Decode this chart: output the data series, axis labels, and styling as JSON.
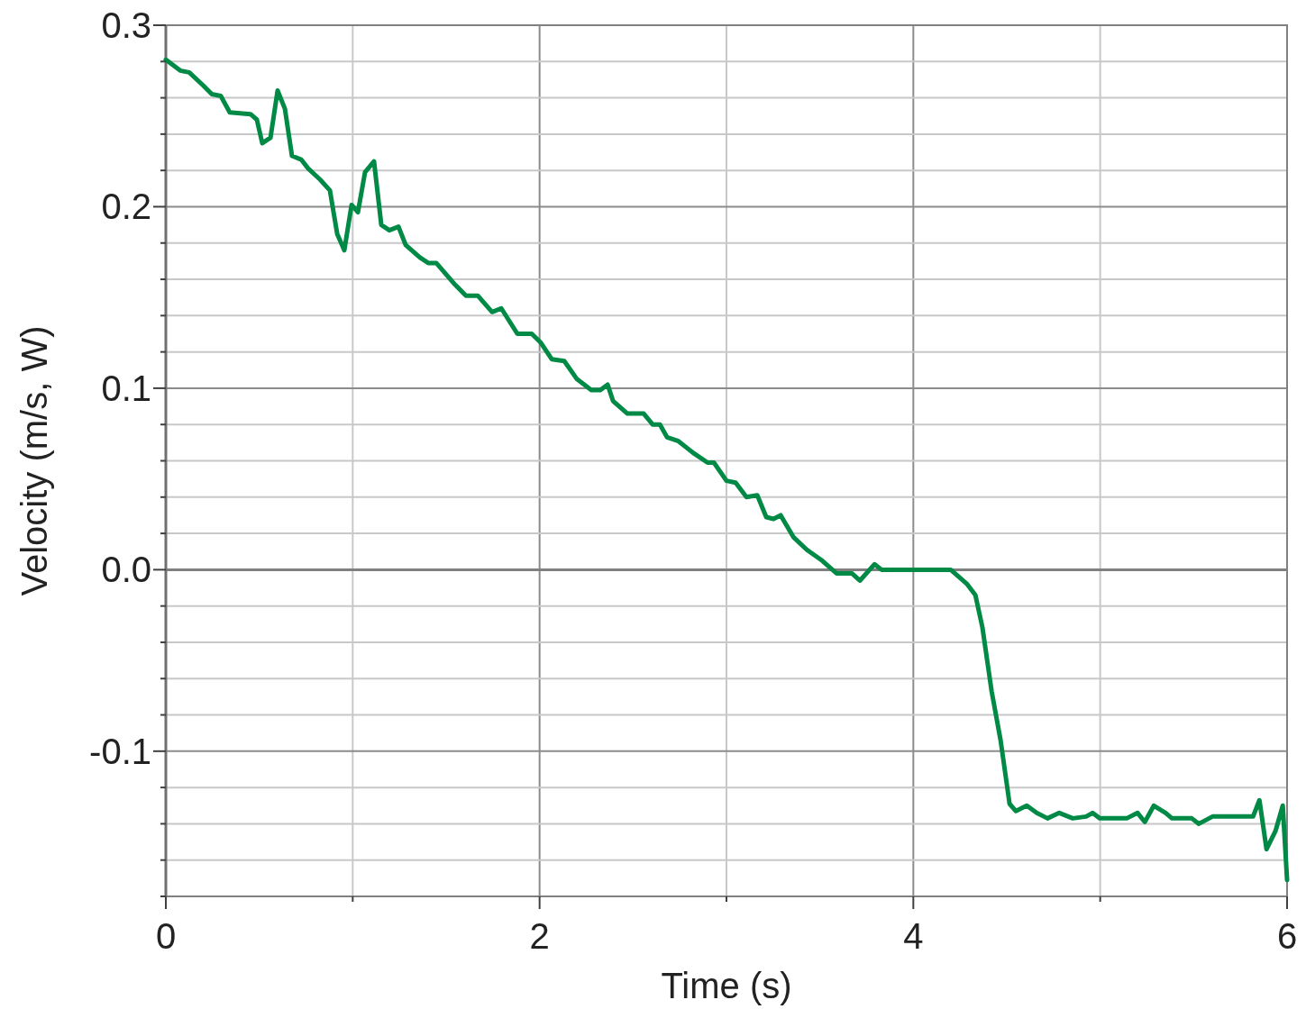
{
  "chart_data": {
    "type": "line",
    "xlabel": "Time (s)",
    "ylabel": "Velocity (m/s, W)",
    "xlim": [
      0,
      6
    ],
    "ylim": [
      -0.18,
      0.3
    ],
    "xticks": [
      0,
      {
        "value": 1,
        "label": null
      },
      2,
      {
        "value": 3,
        "label": null
      },
      4,
      {
        "value": 5,
        "label": null
      },
      6
    ],
    "yticks": [
      {
        "value": -0.18,
        "label": null
      },
      {
        "value": -0.16,
        "label": null
      },
      {
        "value": -0.14,
        "label": null
      },
      {
        "value": -0.12,
        "label": null
      },
      {
        "value": -0.1,
        "label": "-0.1"
      },
      {
        "value": -0.08,
        "label": null
      },
      {
        "value": -0.06,
        "label": null
      },
      {
        "value": -0.04,
        "label": null
      },
      {
        "value": -0.02,
        "label": null
      },
      {
        "value": 0,
        "label": "0.0"
      },
      {
        "value": 0.02,
        "label": null
      },
      {
        "value": 0.04,
        "label": null
      },
      {
        "value": 0.06,
        "label": null
      },
      {
        "value": 0.08,
        "label": null
      },
      {
        "value": 0.1,
        "label": "0.1"
      },
      {
        "value": 0.12,
        "label": null
      },
      {
        "value": 0.14,
        "label": null
      },
      {
        "value": 0.16,
        "label": null
      },
      {
        "value": 0.18,
        "label": null
      },
      {
        "value": 0.2,
        "label": "0.2"
      },
      {
        "value": 0.22,
        "label": null
      },
      {
        "value": 0.24,
        "label": null
      },
      {
        "value": 0.26,
        "label": null
      },
      {
        "value": 0.28,
        "label": null
      },
      {
        "value": 0.3,
        "label": "0.3"
      }
    ],
    "grid": true,
    "marker": "none",
    "line_style": "solid",
    "series": [
      {
        "color": "#008a45",
        "x": [
          0,
          0.077,
          0.125,
          0.198,
          0.246,
          0.294,
          0.342,
          0.453,
          0.487,
          0.516,
          0.56,
          0.598,
          0.637,
          0.675,
          0.724,
          0.762,
          0.825,
          0.878,
          0.917,
          0.955,
          0.994,
          1.028,
          1.066,
          1.114,
          1.153,
          1.196,
          1.245,
          1.283,
          1.36,
          1.404,
          1.447,
          1.548,
          1.606,
          1.669,
          1.746,
          1.795,
          1.881,
          1.958,
          2.007,
          2.065,
          2.132,
          2.2,
          2.277,
          2.325,
          2.364,
          2.393,
          2.47,
          2.557,
          2.605,
          2.644,
          2.682,
          2.74,
          2.827,
          2.899,
          2.933,
          3.0,
          3.049,
          3.107,
          3.165,
          3.213,
          3.252,
          3.29,
          3.358,
          3.43,
          3.512,
          3.589,
          3.671,
          3.714,
          3.792,
          3.83,
          4.2,
          4.288,
          4.332,
          4.37,
          4.419,
          4.467,
          4.515,
          4.549,
          4.607,
          4.66,
          4.718,
          4.781,
          4.853,
          4.925,
          4.959,
          4.998,
          5.142,
          5.2,
          5.239,
          5.287,
          5.35,
          5.384,
          5.49,
          5.528,
          5.601,
          5.818,
          5.852,
          5.89,
          5.938,
          5.977,
          6.0
        ],
        "values": [
          0.281,
          0.275,
          0.274,
          0.267,
          0.262,
          0.261,
          0.252,
          0.251,
          0.248,
          0.235,
          0.238,
          0.264,
          0.254,
          0.228,
          0.226,
          0.221,
          0.215,
          0.209,
          0.185,
          0.176,
          0.201,
          0.197,
          0.219,
          0.225,
          0.19,
          0.187,
          0.189,
          0.179,
          0.172,
          0.169,
          0.169,
          0.157,
          0.151,
          0.151,
          0.142,
          0.144,
          0.13,
          0.13,
          0.125,
          0.116,
          0.115,
          0.105,
          0.099,
          0.099,
          0.102,
          0.093,
          0.086,
          0.086,
          0.08,
          0.08,
          0.073,
          0.071,
          0.064,
          0.059,
          0.059,
          0.049,
          0.048,
          0.04,
          0.041,
          0.029,
          0.028,
          0.03,
          0.018,
          0.011,
          0.005,
          -0.002,
          -0.002,
          -0.006,
          0.003,
          0,
          0,
          -0.008,
          -0.014,
          -0.032,
          -0.067,
          -0.094,
          -0.129,
          -0.133,
          -0.13,
          -0.134,
          -0.137,
          -0.134,
          -0.137,
          -0.136,
          -0.134,
          -0.137,
          -0.137,
          -0.134,
          -0.139,
          -0.13,
          -0.134,
          -0.137,
          -0.137,
          -0.14,
          -0.136,
          -0.136,
          -0.127,
          -0.154,
          -0.144,
          -0.13,
          -0.171
        ]
      }
    ]
  }
}
